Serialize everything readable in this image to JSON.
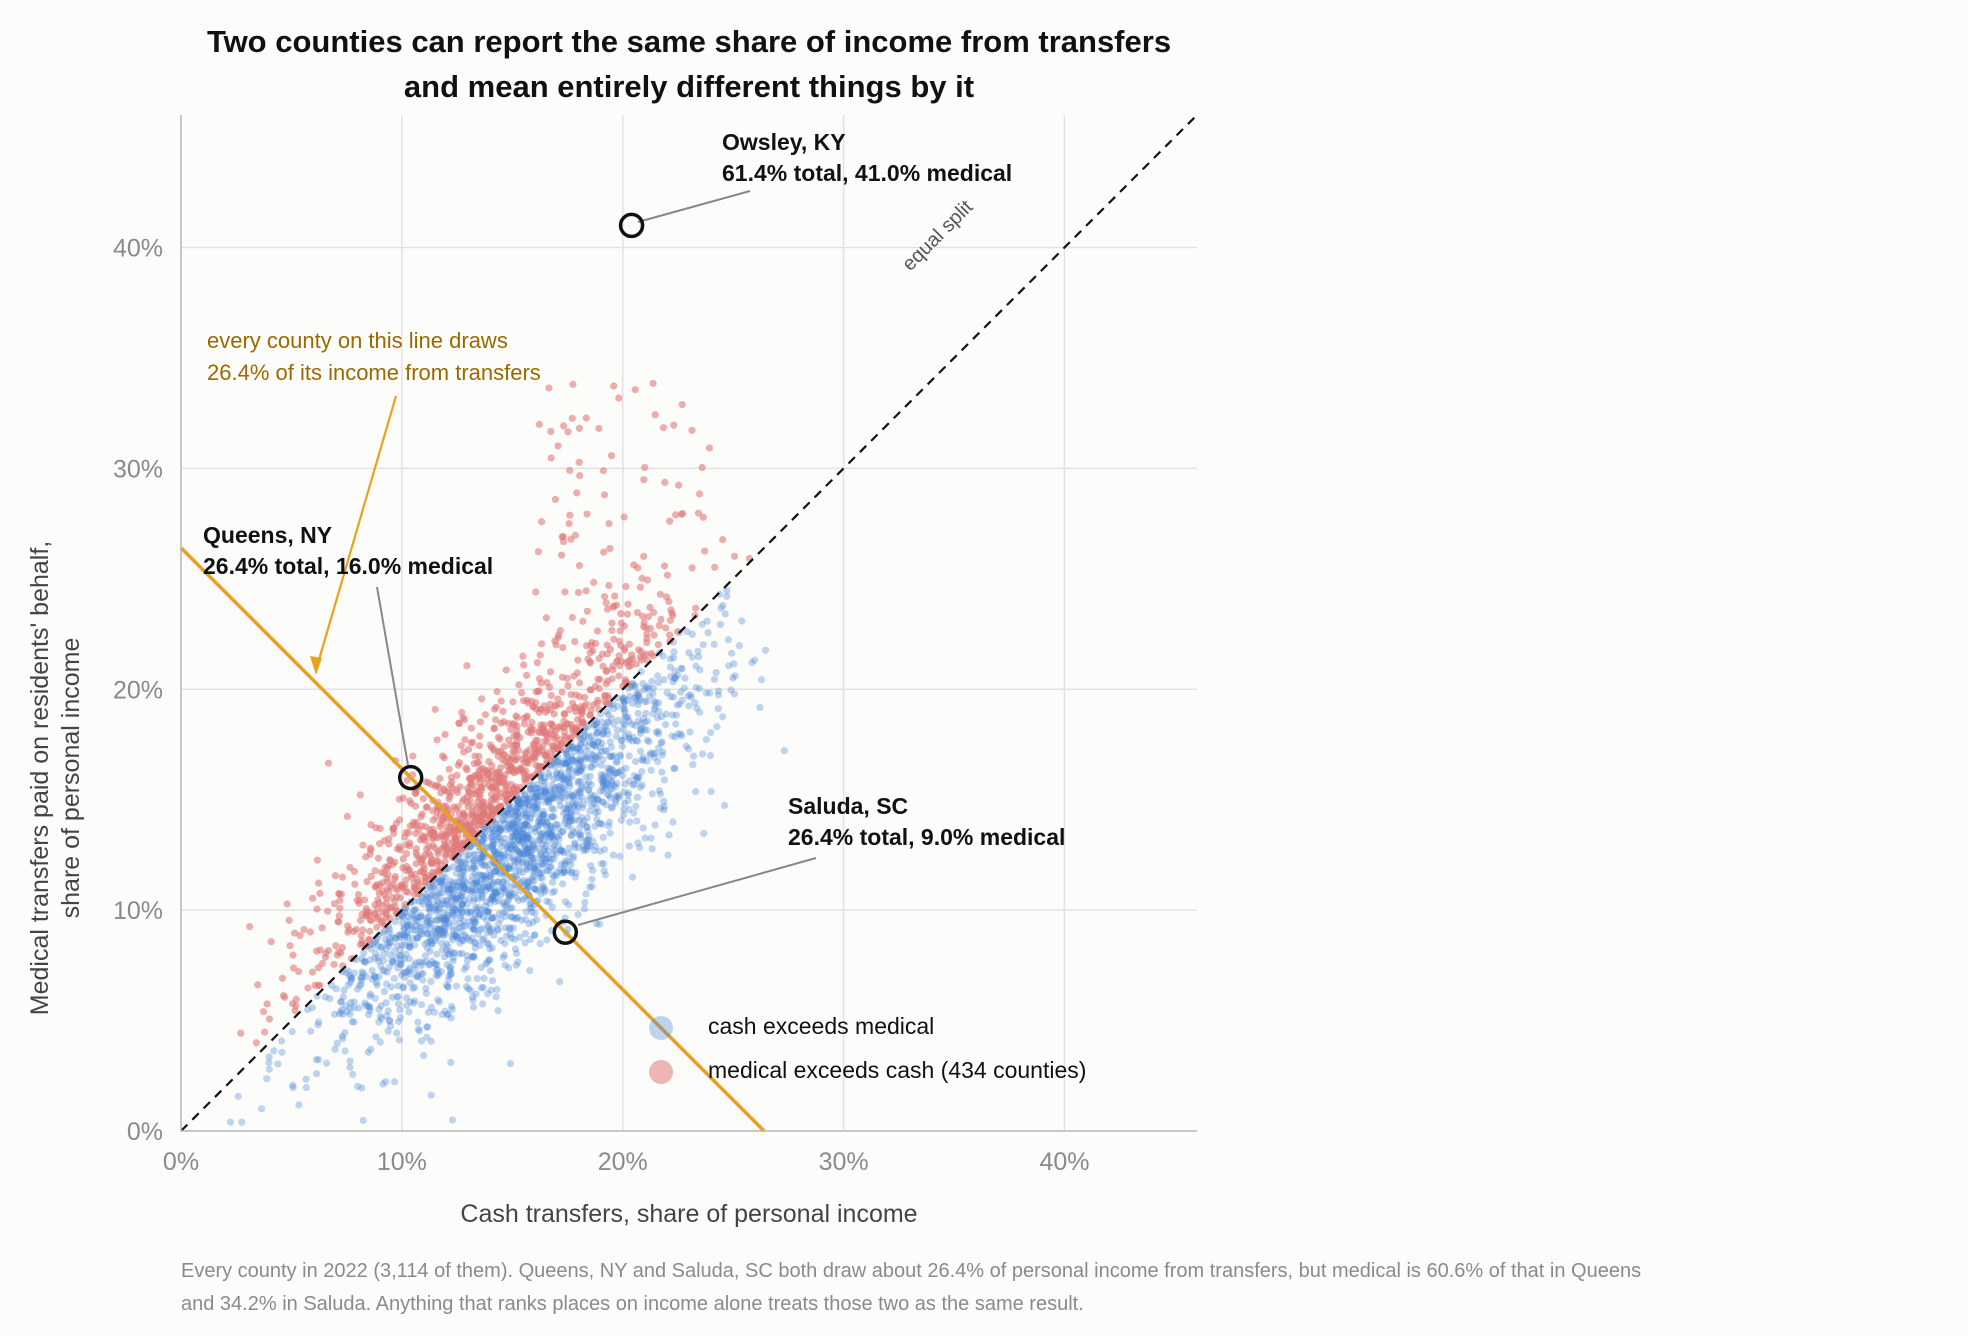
{
  "chart_data": {
    "type": "scatter",
    "title_lines": [
      "Two counties can report the same share of income from transfers",
      "and mean entirely different things by it"
    ],
    "xlabel": "Cash transfers, share of personal income",
    "ylabel_lines": [
      "Medical transfers paid on residents' behalf,",
      "share of personal income"
    ],
    "xlim": [
      0,
      46
    ],
    "ylim": [
      0,
      46
    ],
    "x_ticks": [
      0,
      10,
      20,
      30,
      40
    ],
    "y_ticks": [
      0,
      10,
      20,
      30,
      40
    ],
    "x_tick_labels": [
      "0%",
      "10%",
      "20%",
      "30%",
      "40%"
    ],
    "y_tick_labels": [
      "0%",
      "10%",
      "20%",
      "30%",
      "40%"
    ],
    "grid": true,
    "legend_position": "bottom-right",
    "series": [
      {
        "name": "cash exceeds medical",
        "color": "#4a86d8",
        "legend_label": "cash exceeds medical"
      },
      {
        "name": "medical exceeds cash",
        "color": "#e07a7a",
        "legend_label": "medical exceeds cash  (434 counties)"
      }
    ],
    "reference_lines": {
      "equal_split_label": "equal split",
      "equal_total_value": 26.4,
      "equal_total_note_lines": [
        "every county on this line draws",
        "26.4% of its income from transfers"
      ]
    },
    "highlighted": [
      {
        "name": "Owsley, KY",
        "x": 20.4,
        "y": 41.0,
        "label_lines": [
          "Owsley, KY",
          "61.4% total, 41.0% medical"
        ]
      },
      {
        "name": "Queens, NY",
        "x": 10.4,
        "y": 16.0,
        "label_lines": [
          "Queens, NY",
          "26.4% total, 16.0% medical"
        ]
      },
      {
        "name": "Saluda, SC",
        "x": 17.4,
        "y": 9.0,
        "label_lines": [
          "Saluda, SC",
          "26.4% total, 9.0% medical"
        ]
      }
    ],
    "caption_lines": [
      "Every county in 2022 (3,114 of them). Queens, NY and Saluda, SC both draw about 26.4% of personal income from transfers, but medical is 60.6% of that in Queens",
      "and 34.2% in Saluda. Anything that ranks places on income alone treats those two as the same result."
    ]
  },
  "colors": {
    "blue": "#4a86d8",
    "red": "#e07a7a",
    "gold": "#e8a21c",
    "gold_text": "#9a6a00",
    "grid": "#e2e2e2",
    "axis": "#b5b5b5"
  }
}
